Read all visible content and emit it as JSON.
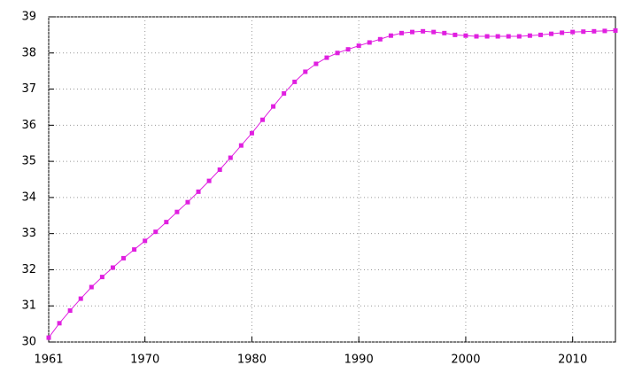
{
  "chart_data": {
    "type": "line",
    "x": [
      1961,
      1962,
      1963,
      1964,
      1965,
      1966,
      1967,
      1968,
      1969,
      1970,
      1971,
      1972,
      1973,
      1974,
      1975,
      1976,
      1977,
      1978,
      1979,
      1980,
      1981,
      1982,
      1983,
      1984,
      1985,
      1986,
      1987,
      1988,
      1989,
      1990,
      1991,
      1992,
      1993,
      1994,
      1995,
      1996,
      1997,
      1998,
      1999,
      2000,
      2001,
      2002,
      2003,
      2004,
      2005,
      2006,
      2007,
      2008,
      2009,
      2010,
      2011,
      2012,
      2013,
      2014
    ],
    "values": [
      30.12,
      30.52,
      30.87,
      31.2,
      31.52,
      31.8,
      32.06,
      32.32,
      32.56,
      32.8,
      33.05,
      33.32,
      33.6,
      33.87,
      34.16,
      34.46,
      34.77,
      35.1,
      35.44,
      35.78,
      36.15,
      36.52,
      36.88,
      37.2,
      37.48,
      37.7,
      37.87,
      38.0,
      38.1,
      38.2,
      38.29,
      38.38,
      38.48,
      38.55,
      38.58,
      38.6,
      38.58,
      38.55,
      38.5,
      38.48,
      38.46,
      38.46,
      38.46,
      38.46,
      38.46,
      38.48,
      38.5,
      38.53,
      38.56,
      38.58,
      38.59,
      38.6,
      38.61,
      38.62
    ],
    "color": "#e020e0",
    "xlim": [
      1961,
      2014
    ],
    "xticks": [
      1961,
      1970,
      1980,
      1990,
      2000,
      2010
    ],
    "ylim": [
      30,
      39
    ],
    "yticks": [
      30,
      31,
      32,
      33,
      34,
      35,
      36,
      37,
      38,
      39
    ],
    "grid": true
  }
}
